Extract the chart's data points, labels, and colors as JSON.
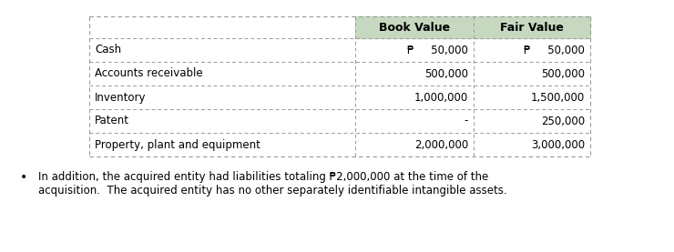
{
  "bg_color": "#ffffff",
  "header_bg": "#c6d9c0",
  "table_border_color": "#999999",
  "cell_border_color": "#999999",
  "header_row": [
    "",
    "Book Value",
    "Fair Value"
  ],
  "rows": [
    [
      "Cash",
      "₱     50,000",
      "₱     50,000"
    ],
    [
      "Accounts receivable",
      "500,000",
      "500,000"
    ],
    [
      "Inventory",
      "1,000,000",
      "1,500,000"
    ],
    [
      "Patent",
      "-",
      "250,000"
    ],
    [
      "Property, plant and equipment",
      "2,000,000",
      "3,000,000"
    ]
  ],
  "footnote_line1": "In addition, the acquired entity had liabilities totaling ₱2,000,000 at the time of the",
  "footnote_line2": "acquisition.  The acquired entity has no other separately identifiable intangible assets.",
  "font_size": 8.5,
  "header_font_size": 9,
  "footnote_font_size": 8.5
}
